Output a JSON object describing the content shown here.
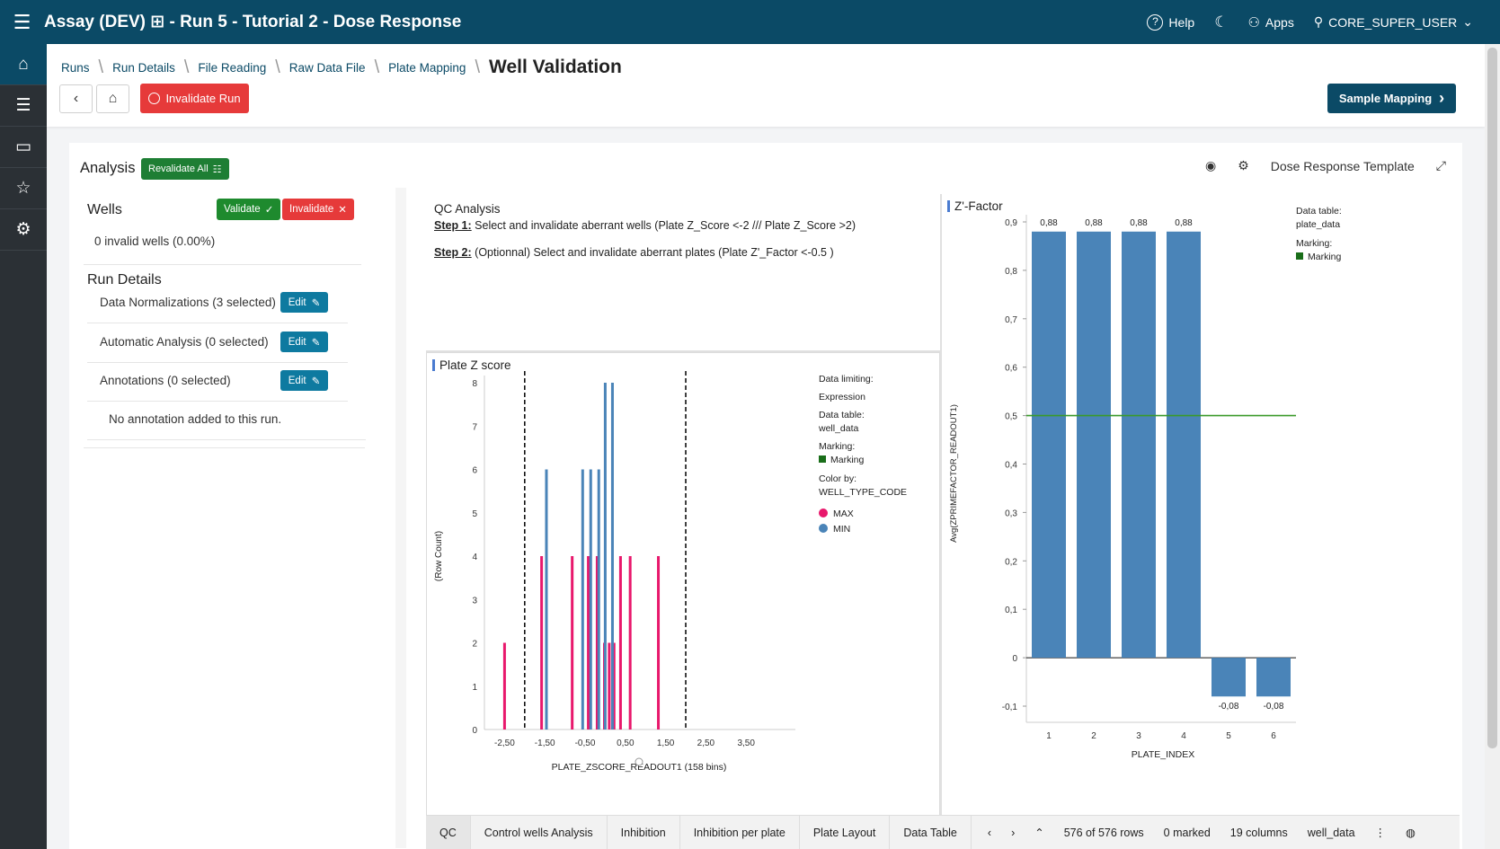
{
  "app": {
    "title": "Assay (DEV) ⊞ - Run 5 - Tutorial 2 - Dose Response",
    "help": "Help",
    "apps": "Apps",
    "user": "CORE_SUPER_USER"
  },
  "breadcrumb": [
    "Runs",
    "Run Details",
    "File Reading",
    "Raw Data File",
    "Plate Mapping"
  ],
  "page_title": "Well Validation",
  "buttons": {
    "invalidate_run": "Invalidate Run",
    "sample_mapping": "Sample Mapping",
    "revalidate_all": "Revalidate All",
    "validate": "Validate",
    "invalidate": "Invalidate",
    "edit": "Edit"
  },
  "analysis": {
    "title": "Analysis",
    "template": "Dose Response Template"
  },
  "wells": {
    "title": "Wells",
    "invalid_text": "0 invalid wells (0.00%)"
  },
  "run_details": {
    "title": "Run Details",
    "rows": [
      "Data Normalizations (3 selected)",
      "Automatic Analysis (0 selected)",
      "Annotations (0 selected)"
    ],
    "no_annotation": "No annotation added to this run."
  },
  "qc": {
    "title": "QC Analysis",
    "step1_label": "Step 1:",
    "step1_text": " Select and invalidate aberrant wells (Plate Z_Score <-2 /// Plate Z_Score >2)",
    "step2_label": "Step 2:",
    "step2_text": " (Optionnal) Select and invalidate aberrant plates (Plate Z'_Factor <-0.5 )"
  },
  "zscore_legend": {
    "data_limiting": "Data limiting:",
    "expression": "Expression",
    "data_table_label": "Data table:",
    "data_table": "well_data",
    "marking_label": "Marking:",
    "marking": "Marking",
    "color_by_label": "Color by:",
    "color_by": "WELL_TYPE_CODE",
    "max": "MAX",
    "min": "MIN"
  },
  "zfactor_legend": {
    "data_table_label": "Data table:",
    "data_table": "plate_data",
    "marking_label": "Marking:",
    "marking": "Marking"
  },
  "colors": {
    "max": "#e8186c",
    "min": "#4a84b8",
    "bar": "#4a84b8",
    "ref_line": "#3a9a2a",
    "topbar": "#0b4a66"
  },
  "tabs": [
    "QC",
    "Control wells Analysis",
    "Inhibition",
    "Inhibition per plate",
    "Plate Layout",
    "Data Table"
  ],
  "status": {
    "rows": "576 of 576 rows",
    "marked": "0 marked",
    "columns": "19 columns",
    "table": "well_data"
  },
  "chart_data": [
    {
      "type": "bar",
      "title": "Plate Z score",
      "xlabel": "PLATE_ZSCORE_READOUT1 (158 bins)",
      "ylabel": "(Row Count)",
      "xticks": [
        "-2,50",
        "-1,50",
        "-0,50",
        "0,50",
        "1,50",
        "2,50",
        "3,50"
      ],
      "xlim": [
        -3,
        4.5
      ],
      "yticks": [
        "0",
        "1",
        "2",
        "3",
        "4",
        "5",
        "6",
        "7",
        "8"
      ],
      "ylim": [
        0,
        8
      ],
      "reference_lines_x": [
        -2,
        2
      ],
      "series": [
        {
          "name": "MAX",
          "x": [
            -2.5,
            -1.58,
            -0.82,
            -0.42,
            -0.2,
            -0.02,
            0.1,
            0.22,
            0.38,
            0.62,
            1.32
          ],
          "values": [
            2,
            4,
            4,
            4,
            4,
            2,
            2,
            2,
            4,
            4,
            4
          ]
        },
        {
          "name": "MIN",
          "x": [
            -1.46,
            -0.56,
            -0.36,
            -0.16,
            0.0,
            0.18
          ],
          "values": [
            6,
            6,
            6,
            6,
            8,
            8
          ]
        }
      ]
    },
    {
      "type": "bar",
      "title": "Z'-Factor",
      "xlabel": "PLATE_INDEX",
      "ylabel": "Avg(ZPRIMEFACTOR_READOUT1)",
      "categories": [
        "1",
        "2",
        "3",
        "4",
        "5",
        "6"
      ],
      "values": [
        0.88,
        0.88,
        0.88,
        0.88,
        -0.08,
        -0.08
      ],
      "data_labels": [
        "0,88",
        "0,88",
        "0,88",
        "0,88",
        "-0,08",
        "-0,08"
      ],
      "yticks": [
        "-0,1",
        "0",
        "0,1",
        "0,2",
        "0,3",
        "0,4",
        "0,5",
        "0,6",
        "0,7",
        "0,8",
        "0,9"
      ],
      "ylim": [
        -0.1,
        0.9
      ],
      "reference_line_y": 0.5
    }
  ]
}
